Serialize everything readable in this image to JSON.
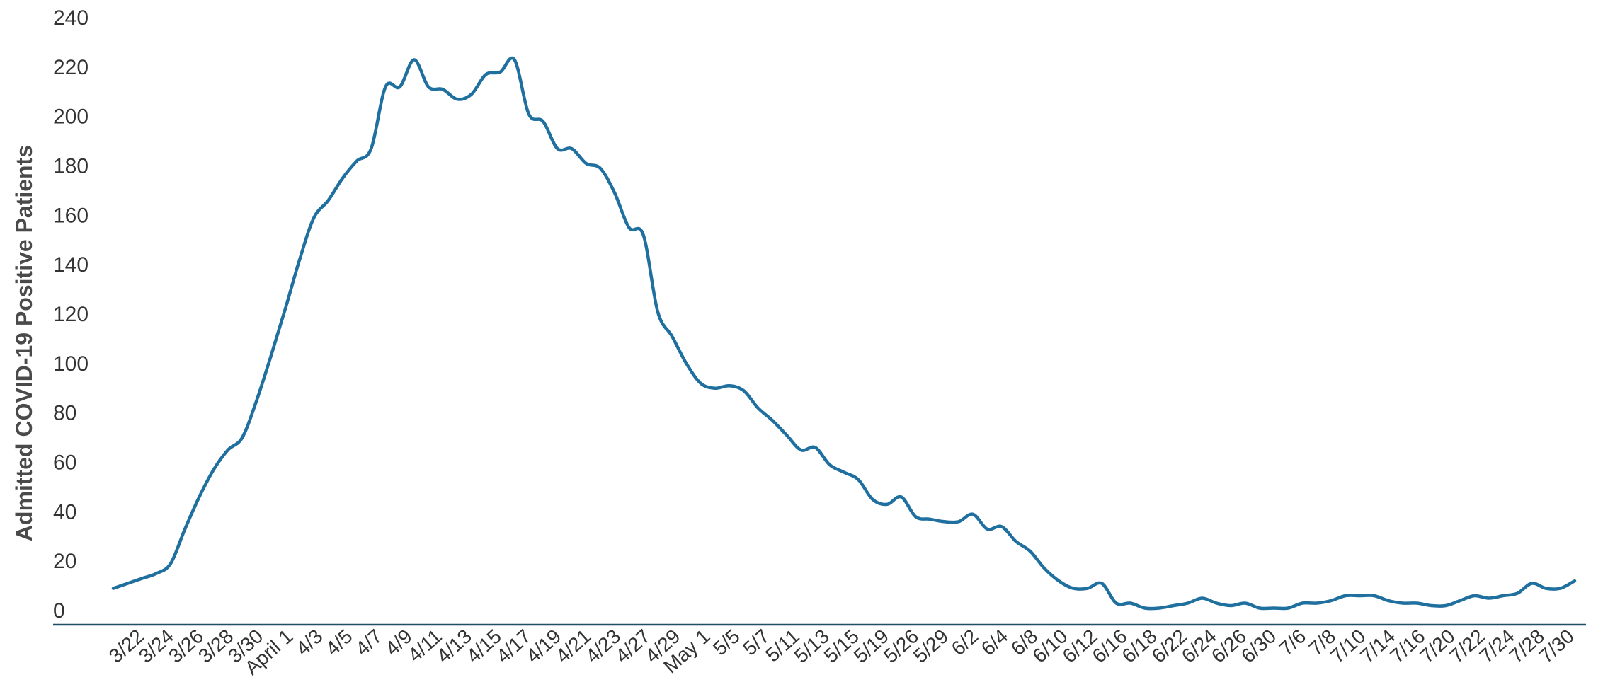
{
  "chart_data": {
    "type": "line",
    "title": "",
    "xlabel": "",
    "ylabel": "Admitted COVID-19 Positive Patients",
    "ylim": [
      0,
      240
    ],
    "yticks": [
      0,
      20,
      40,
      60,
      80,
      100,
      120,
      140,
      160,
      180,
      200,
      220,
      240
    ],
    "grid": false,
    "legend": "none",
    "line_color": "#1f6f9f",
    "axis_color": "#1f4e66",
    "x_tick_labels": [
      "3/22",
      "3/24",
      "3/26",
      "3/28",
      "3/30",
      "April 1",
      "4/3",
      "4/5",
      "4/7",
      "4/9",
      "4/11",
      "4/13",
      "4/15",
      "4/17",
      "4/19",
      "4/21",
      "4/23",
      "4/27",
      "4/29",
      "May 1",
      "5/5",
      "5/7",
      "5/11",
      "5/13",
      "5/15",
      "5/19",
      "5/26",
      "5/29",
      "6/2",
      "6/4",
      "6/8",
      "6/10",
      "6/12",
      "6/16",
      "6/18",
      "6/22",
      "6/24",
      "6/26",
      "6/30",
      "7/6",
      "7/8",
      "7/10",
      "7/14",
      "7/16",
      "7/20",
      "7/22",
      "7/24",
      "7/28",
      "7/30"
    ],
    "series": [
      {
        "values": [
          9,
          11,
          13,
          15,
          19,
          33,
          46,
          57,
          65,
          70,
          85,
          103,
          122,
          142,
          159,
          166,
          175,
          182,
          187,
          212,
          212,
          223,
          212,
          211,
          207,
          209,
          217,
          218,
          223,
          201,
          198,
          187,
          187,
          181,
          179,
          169,
          155,
          152,
          121,
          111,
          100,
          92,
          90,
          91,
          89,
          82,
          77,
          71,
          65,
          66,
          59,
          56,
          53,
          45,
          43,
          46,
          38,
          37,
          36,
          36,
          39,
          33,
          34,
          28,
          24,
          17,
          12,
          9,
          9,
          11,
          3,
          3,
          1,
          1,
          2,
          3,
          5,
          3,
          2,
          3,
          1,
          1,
          1,
          3,
          3,
          4,
          6,
          6,
          6,
          4,
          3,
          3,
          2,
          2,
          4,
          6,
          5,
          6,
          7,
          11,
          9,
          9,
          12
        ]
      }
    ]
  }
}
